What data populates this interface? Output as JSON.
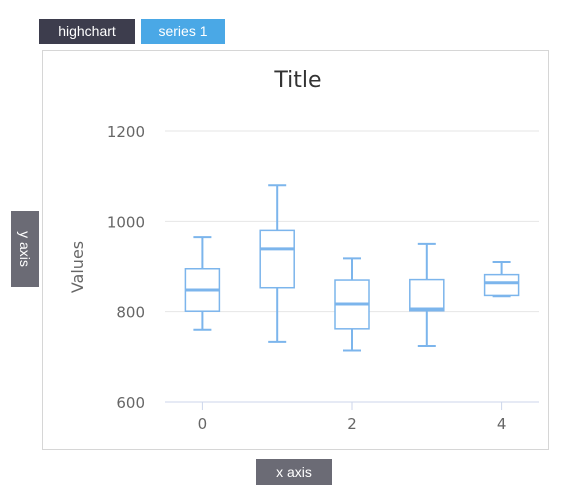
{
  "tabs": {
    "highchart": "highchart",
    "series": "series 1"
  },
  "buttons": {
    "y_axis": "y axis",
    "x_axis": "x axis"
  },
  "colors": {
    "box_stroke": "#7cb5ec",
    "grid": "#e6e6e6",
    "text": "#666666",
    "title": "#333333"
  },
  "chart_data": {
    "type": "boxplot",
    "title": "Title",
    "xlabel": "",
    "ylabel": "Values",
    "ylim": [
      600,
      1200
    ],
    "yticks": [
      600,
      800,
      1000,
      1200
    ],
    "xticks": [
      0,
      2,
      4
    ],
    "grid": true,
    "series": [
      {
        "boxes": [
          {
            "x": 0,
            "low": 760,
            "q1": 801,
            "median": 848,
            "q3": 895,
            "high": 965
          },
          {
            "x": 1,
            "low": 733,
            "q1": 853,
            "median": 939,
            "q3": 980,
            "high": 1080
          },
          {
            "x": 2,
            "low": 714,
            "q1": 762,
            "median": 817,
            "q3": 870,
            "high": 918
          },
          {
            "x": 3,
            "low": 724,
            "q1": 802,
            "median": 806,
            "q3": 871,
            "high": 950
          },
          {
            "x": 4,
            "low": 834,
            "q1": 836,
            "median": 864,
            "q3": 882,
            "high": 910
          }
        ]
      }
    ]
  }
}
